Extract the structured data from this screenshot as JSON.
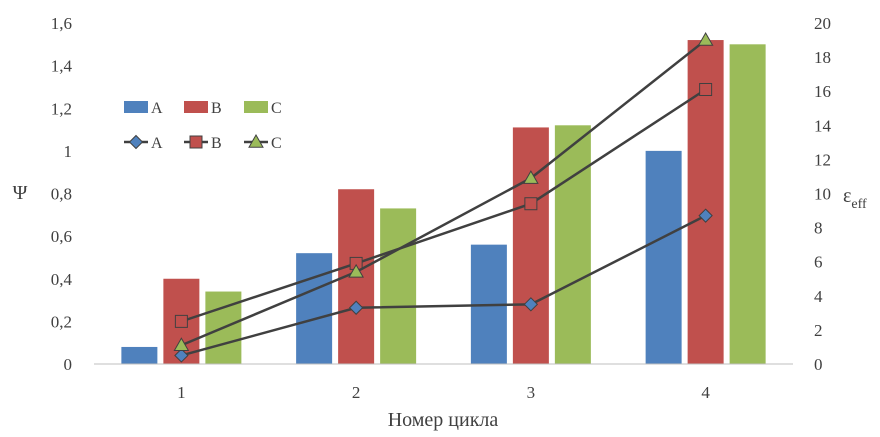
{
  "chart_data": {
    "type": "bar",
    "categories": [
      "1",
      "2",
      "3",
      "4"
    ],
    "xlabel": "Номер цикла",
    "ylabel": "Ψ",
    "y2label": "ε",
    "y2label_sub": "eff",
    "ylim": [
      0,
      1.6
    ],
    "y2lim": [
      0,
      20
    ],
    "yticks": [
      "0",
      "0,2",
      "0,4",
      "0,6",
      "0,8",
      "1",
      "1,2",
      "1,4",
      "1,6"
    ],
    "y2ticks": [
      "0",
      "2",
      "4",
      "6",
      "8",
      "10",
      "12",
      "14",
      "16",
      "18",
      "20"
    ],
    "grid": false,
    "legend_position": "upper-left",
    "bar_series": [
      {
        "name": "A",
        "values": [
          0.08,
          0.52,
          0.56,
          1.0
        ],
        "color": "#4f81bd",
        "axis": "left"
      },
      {
        "name": "B",
        "values": [
          0.4,
          0.82,
          1.11,
          1.52
        ],
        "color": "#c0504d",
        "axis": "left"
      },
      {
        "name": "C",
        "values": [
          0.34,
          0.73,
          1.12,
          1.5
        ],
        "color": "#9bbb59",
        "axis": "left"
      }
    ],
    "line_series": [
      {
        "name": "A",
        "values": [
          0.5,
          3.3,
          3.5,
          8.7
        ],
        "color": "#4f81bd",
        "marker": "diamond",
        "axis": "right"
      },
      {
        "name": "B",
        "values": [
          2.5,
          5.9,
          9.4,
          16.1
        ],
        "color": "#c0504d",
        "marker": "square",
        "axis": "right"
      },
      {
        "name": "C",
        "values": [
          1.1,
          5.4,
          10.9,
          19.0
        ],
        "color": "#9bbb59",
        "marker": "triangle",
        "axis": "right"
      }
    ],
    "line_color": "#404040"
  }
}
